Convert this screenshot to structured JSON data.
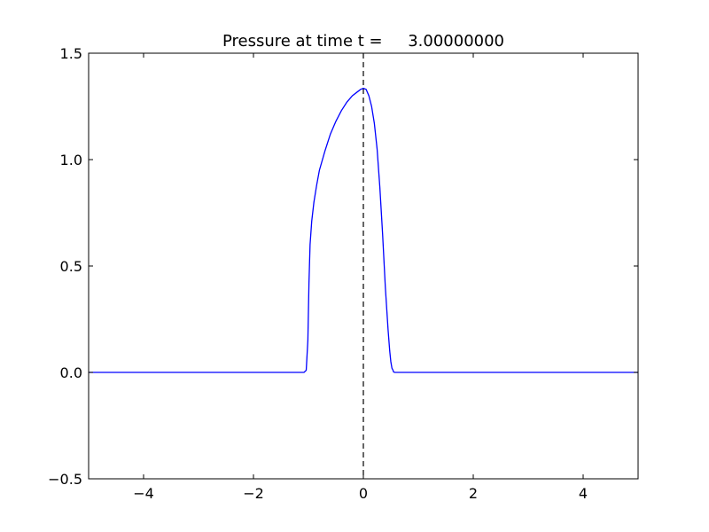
{
  "chart_data": {
    "type": "line",
    "title": "Pressure at time t =     3.00000000",
    "xlabel": "",
    "ylabel": "",
    "xlim": [
      -5,
      5
    ],
    "ylim": [
      -0.5,
      1.5
    ],
    "grid": false,
    "xticks": [
      -4,
      -2,
      0,
      2,
      4
    ],
    "xtick_labels": [
      "−4",
      "−2",
      "0",
      "2",
      "4"
    ],
    "yticks": [
      -0.5,
      0.0,
      0.5,
      1.0,
      1.5
    ],
    "ytick_labels": [
      "−0.5",
      "0.0",
      "0.5",
      "1.0",
      "1.5"
    ],
    "vline": {
      "x": 0,
      "style": "dashed",
      "color": "#000000"
    },
    "series": [
      {
        "color": "#0000ff",
        "x": [
          -5.0,
          -1.08,
          -1.04,
          -1.01,
          -0.99,
          -0.97,
          -0.94,
          -0.9,
          -0.85,
          -0.8,
          -0.7,
          -0.6,
          -0.5,
          -0.4,
          -0.3,
          -0.2,
          -0.1,
          -0.05,
          0.0,
          0.05,
          0.1,
          0.15,
          0.2,
          0.25,
          0.3,
          0.35,
          0.4,
          0.45,
          0.48,
          0.5,
          0.52,
          0.54,
          0.55,
          0.57,
          0.6,
          5.0
        ],
        "y": [
          0.0,
          0.0,
          0.01,
          0.15,
          0.42,
          0.6,
          0.71,
          0.8,
          0.88,
          0.95,
          1.04,
          1.12,
          1.18,
          1.23,
          1.27,
          1.3,
          1.32,
          1.33,
          1.335,
          1.33,
          1.3,
          1.25,
          1.17,
          1.05,
          0.87,
          0.65,
          0.4,
          0.2,
          0.1,
          0.05,
          0.02,
          0.01,
          0.002,
          0.0,
          0.0,
          0.0
        ]
      }
    ]
  }
}
